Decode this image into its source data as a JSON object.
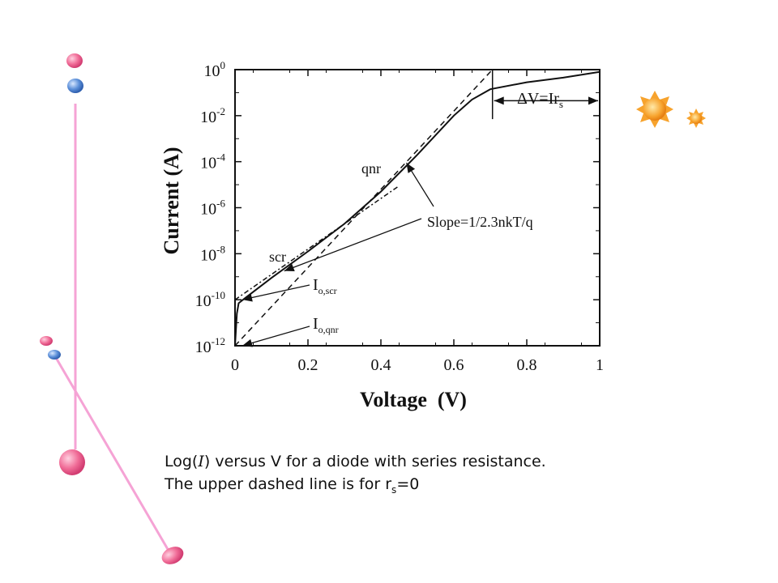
{
  "caption": {
    "line1_prefix": "Log(",
    "line1_var": "I",
    "line1_suffix": ") versus V for a diode with series resistance.",
    "line2_prefix": "The upper dashed line is for r",
    "line2_sub": "s",
    "line2_suffix": "=0"
  },
  "colors": {
    "pink": "#f06c97",
    "blue": "#5b8fd9",
    "line_pink": "#f5a3d5",
    "sun": "#f7a32d"
  },
  "icons": [
    "pink-bubble-icon",
    "blue-bubble-icon",
    "sun-icon"
  ],
  "chart_data": {
    "type": "line",
    "xlabel": "Voltage  (V)",
    "ylabel": "Current (A)",
    "xlim": [
      0,
      1
    ],
    "ylim_log10": [
      -12,
      0
    ],
    "y_scale": "log",
    "x_ticks": [
      {
        "value": 0,
        "label": "0"
      },
      {
        "value": 0.2,
        "label": "0.2"
      },
      {
        "value": 0.4,
        "label": "0.4"
      },
      {
        "value": 0.6,
        "label": "0.6"
      },
      {
        "value": 0.8,
        "label": "0.8"
      },
      {
        "value": 1,
        "label": "1"
      }
    ],
    "y_ticks": [
      {
        "exp": 0,
        "base": "10",
        "sup": "0"
      },
      {
        "exp": -2,
        "base": "10",
        "sup": "-2"
      },
      {
        "exp": -4,
        "base": "10",
        "sup": "-4"
      },
      {
        "exp": -6,
        "base": "10",
        "sup": "-6"
      },
      {
        "exp": -8,
        "base": "10",
        "sup": "-8"
      },
      {
        "exp": -10,
        "base": "10",
        "sup": "-10"
      },
      {
        "exp": -12,
        "base": "10",
        "sup": "-12"
      }
    ],
    "series": [
      {
        "style": "solid",
        "points": [
          [
            0,
            -12
          ],
          [
            0.005,
            -10.6
          ],
          [
            0.01,
            -10.15
          ],
          [
            0.03,
            -9.9
          ],
          [
            0.1,
            -9.05
          ],
          [
            0.2,
            -7.9
          ],
          [
            0.3,
            -6.7
          ],
          [
            0.4,
            -5.3
          ],
          [
            0.5,
            -3.7
          ],
          [
            0.6,
            -2.0
          ],
          [
            0.65,
            -1.3
          ],
          [
            0.7,
            -0.85
          ],
          [
            0.8,
            -0.55
          ],
          [
            0.9,
            -0.35
          ],
          [
            1.0,
            -0.1
          ]
        ]
      },
      {
        "style": "dashed",
        "points": [
          [
            0,
            -12
          ],
          [
            0.1,
            -10.3
          ],
          [
            0.2,
            -8.6
          ],
          [
            0.3,
            -6.9
          ],
          [
            0.4,
            -5.2
          ],
          [
            0.5,
            -3.5
          ],
          [
            0.6,
            -1.8
          ],
          [
            0.7,
            -0.1
          ],
          [
            0.706,
            0
          ]
        ]
      },
      {
        "style": "dash-dot",
        "points": [
          [
            0,
            -10
          ],
          [
            0.1,
            -8.9
          ],
          [
            0.2,
            -7.8
          ],
          [
            0.3,
            -6.7
          ],
          [
            0.4,
            -5.6
          ],
          [
            0.45,
            -5.05
          ]
        ]
      }
    ],
    "annotations": {
      "qnr": "qnr",
      "scr": "scr",
      "slope_label": "Slope=1/2.3nkT/q",
      "delta_label": "ΔV=Ir",
      "delta_sub": "s",
      "io_scr_main": "I",
      "io_scr_sub": "o,scr",
      "io_qnr_main": "I",
      "io_qnr_sub": "o,qnr"
    }
  }
}
